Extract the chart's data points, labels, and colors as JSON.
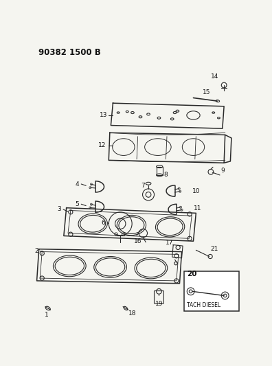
{
  "title": "90382 1500 B",
  "bg_color": "#f5f5f0",
  "line_color": "#2a2a2a",
  "label_color": "#111111",
  "fig_width": 3.96,
  "fig_height": 5.33,
  "dpi": 100,
  "header": "90382 1500 B",
  "tach_diesel_label": "TACH DIESEL",
  "part_label_size": 6.5,
  "header_size": 8.5
}
